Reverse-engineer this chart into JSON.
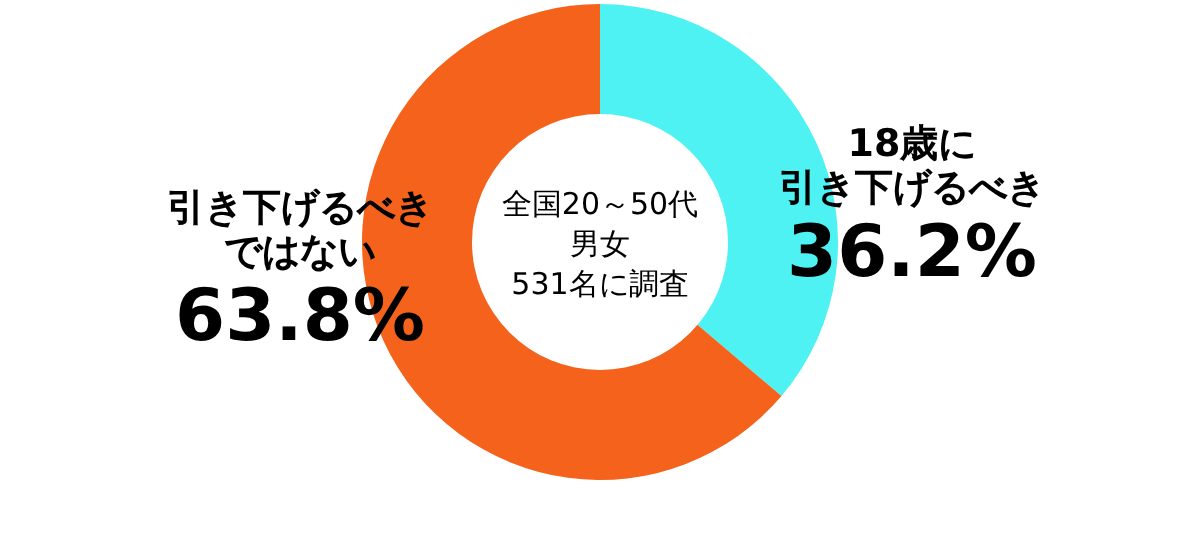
{
  "chart_data": {
    "type": "donut",
    "categories": [
      "18歳に引き下げるべき",
      "引き下げるべきではない"
    ],
    "values": [
      36.2,
      63.8
    ],
    "colors": [
      "#4ff2f2",
      "#f4621c"
    ],
    "value_labels": [
      "36.2%",
      "63.8%"
    ],
    "annotations": [
      "全国20～50代",
      "男女",
      "531名に調査"
    ]
  }
}
